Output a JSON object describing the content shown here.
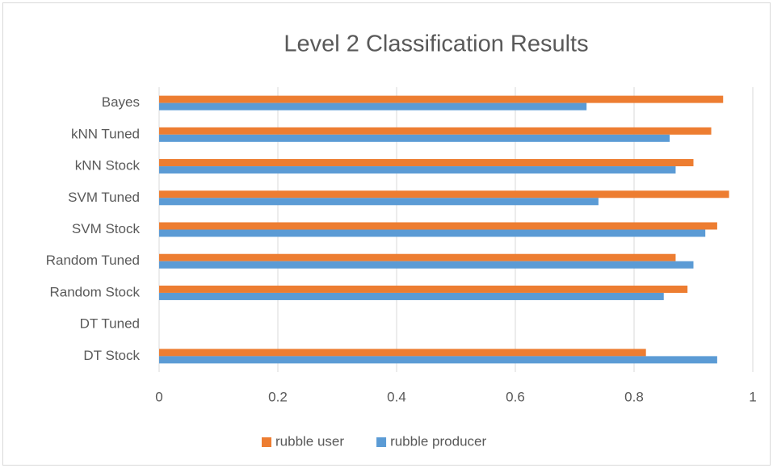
{
  "chart_data": {
    "type": "hbar",
    "title": "Level 2 Classification Results",
    "categories": [
      "Bayes",
      "kNN Tuned",
      "kNN Stock",
      "SVM Tuned",
      "SVM Stock",
      "Random Tuned",
      "Random Stock",
      "DT Tuned",
      "DT Stock"
    ],
    "series": [
      {
        "name": "rubble user",
        "color": "#ed7d31",
        "values": [
          0.95,
          0.93,
          0.9,
          0.96,
          0.94,
          0.87,
          0.89,
          null,
          0.82
        ]
      },
      {
        "name": "rubble producer",
        "color": "#5b9bd5",
        "values": [
          0.72,
          0.86,
          0.87,
          0.74,
          0.92,
          0.9,
          0.85,
          null,
          0.94
        ]
      }
    ],
    "xlim": [
      0,
      1
    ],
    "xticks": [
      0,
      0.2,
      0.4,
      0.6,
      0.8,
      1
    ],
    "grid": true,
    "legend": "bottom"
  }
}
